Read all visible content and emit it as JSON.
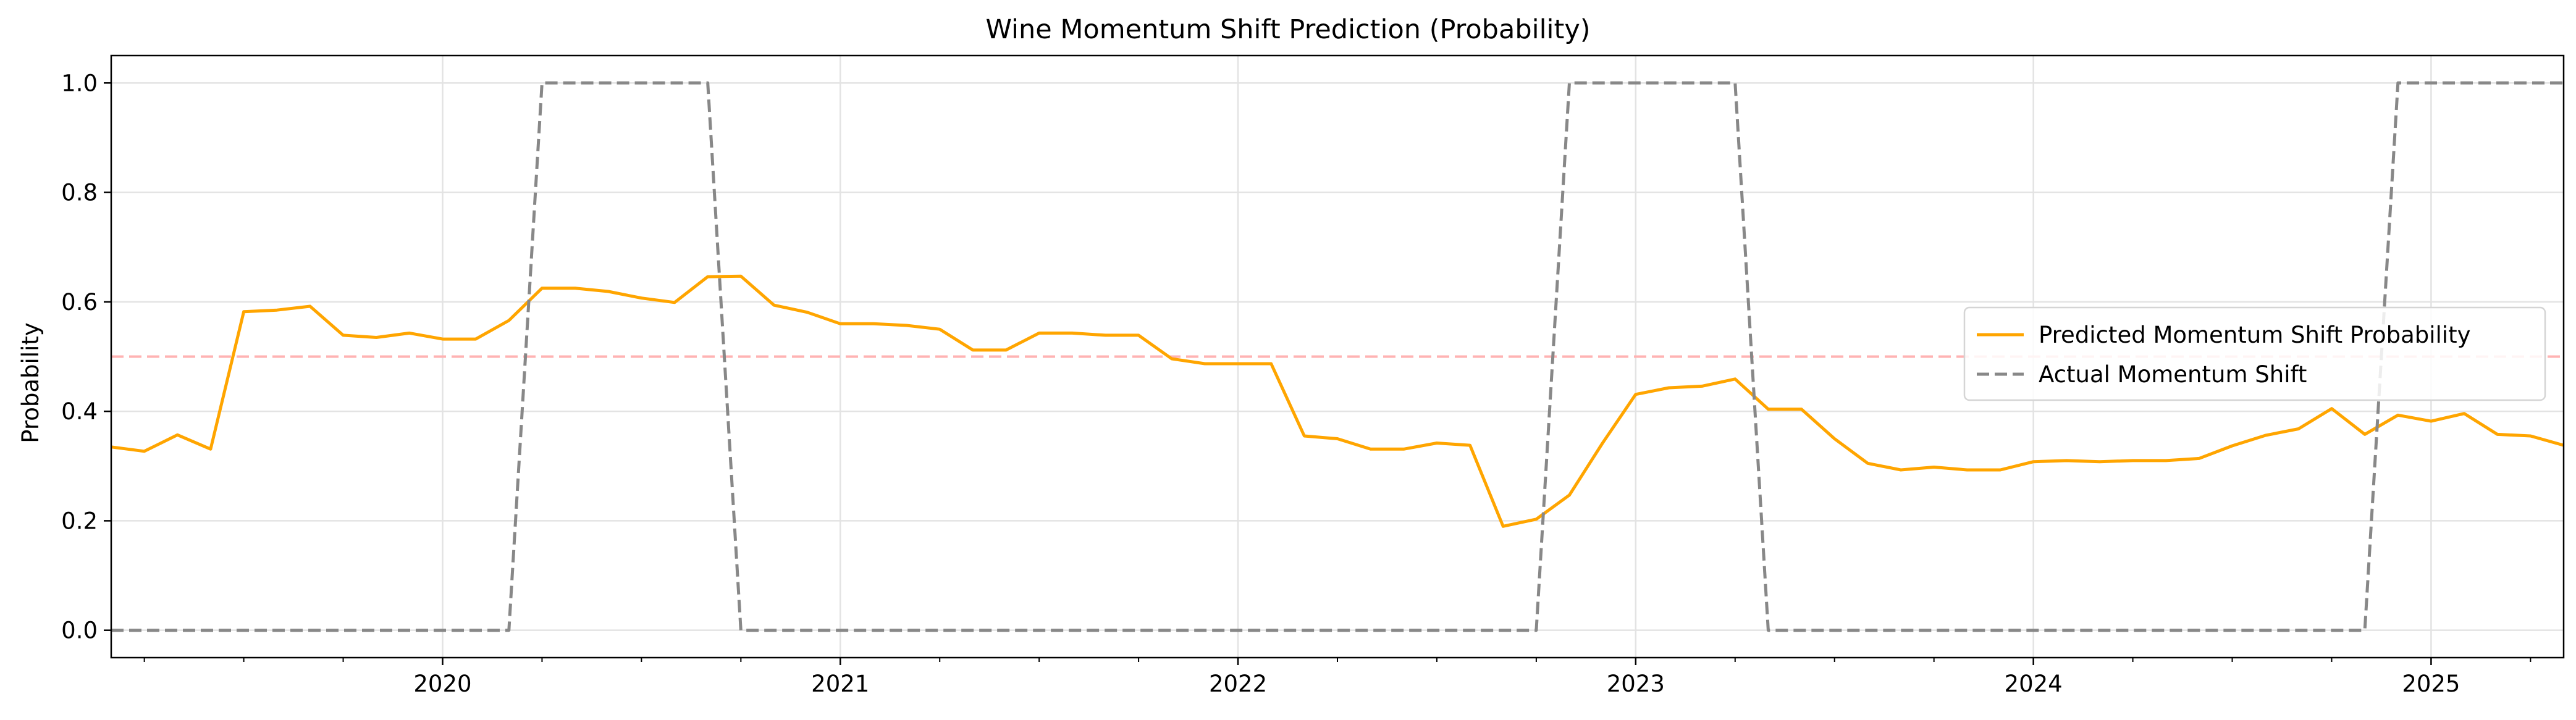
{
  "chart_data": {
    "type": "line",
    "title": "Wine Momentum Shift Prediction (Probability)",
    "xlabel": "",
    "ylabel": "Probability",
    "xlim": [
      "2019-03",
      "2025-05"
    ],
    "ylim": [
      -0.05,
      1.05
    ],
    "x_ticks": [
      "2020",
      "2021",
      "2022",
      "2023",
      "2024",
      "2025"
    ],
    "y_ticks": [
      "0.0",
      "0.2",
      "0.4",
      "0.6",
      "0.8",
      "1.0"
    ],
    "grid": true,
    "legend_position": "center-right",
    "threshold": {
      "value": 0.5,
      "color": "#ffb3b3",
      "style": "dashed"
    },
    "x": [
      "2019-03",
      "2019-04",
      "2019-05",
      "2019-06",
      "2019-07",
      "2019-08",
      "2019-09",
      "2019-10",
      "2019-11",
      "2019-12",
      "2020-01",
      "2020-02",
      "2020-03",
      "2020-04",
      "2020-05",
      "2020-06",
      "2020-07",
      "2020-08",
      "2020-09",
      "2020-10",
      "2020-11",
      "2020-12",
      "2021-01",
      "2021-02",
      "2021-03",
      "2021-04",
      "2021-05",
      "2021-06",
      "2021-07",
      "2021-08",
      "2021-09",
      "2021-10",
      "2021-11",
      "2021-12",
      "2022-01",
      "2022-02",
      "2022-03",
      "2022-04",
      "2022-05",
      "2022-06",
      "2022-07",
      "2022-08",
      "2022-09",
      "2022-10",
      "2022-11",
      "2022-12",
      "2023-01",
      "2023-02",
      "2023-03",
      "2023-04",
      "2023-05",
      "2023-06",
      "2023-07",
      "2023-08",
      "2023-09",
      "2023-10",
      "2023-11",
      "2023-12",
      "2024-01",
      "2024-02",
      "2024-03",
      "2024-04",
      "2024-05",
      "2024-06",
      "2024-07",
      "2024-08",
      "2024-09",
      "2024-10",
      "2024-11",
      "2024-12",
      "2025-01",
      "2025-02",
      "2025-03",
      "2025-04",
      "2025-05"
    ],
    "series": [
      {
        "name": "Predicted Momentum Shift Probability",
        "color": "#ffa500",
        "style": "solid",
        "values": [
          0.335,
          0.327,
          0.357,
          0.331,
          0.582,
          0.585,
          0.592,
          0.539,
          0.535,
          0.543,
          0.532,
          0.532,
          0.566,
          0.625,
          0.625,
          0.619,
          0.607,
          0.599,
          0.646,
          0.647,
          0.594,
          0.581,
          0.56,
          0.56,
          0.557,
          0.55,
          0.512,
          0.512,
          0.543,
          0.543,
          0.539,
          0.539,
          0.496,
          0.487,
          0.487,
          0.487,
          0.355,
          0.35,
          0.331,
          0.331,
          0.342,
          0.338,
          0.19,
          0.203,
          0.247,
          0.342,
          0.431,
          0.443,
          0.446,
          0.459,
          0.404,
          0.404,
          0.35,
          0.305,
          0.293,
          0.298,
          0.293,
          0.293,
          0.308,
          0.31,
          0.308,
          0.31,
          0.31,
          0.314,
          0.337,
          0.356,
          0.368,
          0.405,
          0.358,
          0.393,
          0.382,
          0.396,
          0.358,
          0.355,
          0.338
        ]
      },
      {
        "name": "Actual Momentum Shift",
        "color": "#888888",
        "style": "dashed",
        "values": [
          0,
          0,
          0,
          0,
          0,
          0,
          0,
          0,
          0,
          0,
          0,
          0,
          0,
          1,
          1,
          1,
          1,
          1,
          1,
          0,
          0,
          0,
          0,
          0,
          0,
          0,
          0,
          0,
          0,
          0,
          0,
          0,
          0,
          0,
          0,
          0,
          0,
          0,
          0,
          0,
          0,
          0,
          0,
          0,
          1,
          1,
          1,
          1,
          1,
          1,
          0,
          0,
          0,
          0,
          0,
          0,
          0,
          0,
          0,
          0,
          0,
          0,
          0,
          0,
          0,
          0,
          0,
          0,
          0,
          1,
          1,
          1,
          1,
          1,
          1
        ]
      }
    ]
  }
}
